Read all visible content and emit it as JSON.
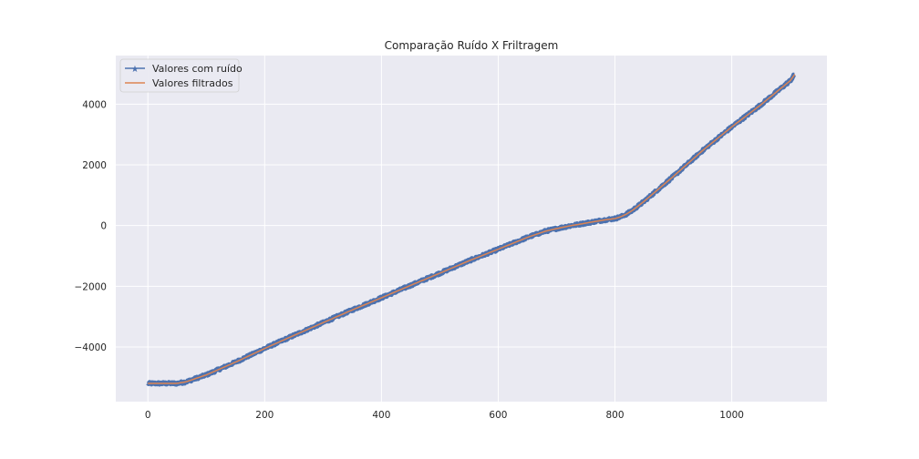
{
  "chart_data": {
    "type": "line",
    "title": "Comparação Ruído X Friltragem",
    "xlabel": "",
    "ylabel": "",
    "xlim": [
      -55,
      1163
    ],
    "ylim": [
      -5800,
      5600
    ],
    "xticks": [
      0,
      200,
      400,
      600,
      800,
      1000
    ],
    "yticks": [
      -4000,
      -2000,
      0,
      2000,
      4000
    ],
    "xtick_labels": [
      "0",
      "200",
      "400",
      "600",
      "800",
      "1000"
    ],
    "ytick_labels": [
      "−4000",
      "−2000",
      "0",
      "2000",
      "4000"
    ],
    "grid": true,
    "legend_position": "top-left",
    "x": [
      0,
      25,
      50,
      65,
      80,
      100,
      150,
      200,
      250,
      300,
      350,
      400,
      450,
      500,
      550,
      600,
      650,
      680,
      700,
      720,
      750,
      780,
      800,
      810,
      820,
      830,
      850,
      900,
      950,
      1000,
      1050,
      1100,
      1108
    ],
    "series": [
      {
        "name": "Valores com ruído",
        "color": "#4c72b0",
        "marker": "star",
        "values": [
          -5200,
          -5200,
          -5200,
          -5150,
          -5050,
          -4920,
          -4500,
          -4050,
          -3620,
          -3200,
          -2780,
          -2380,
          -1970,
          -1570,
          -1160,
          -780,
          -390,
          -190,
          -100,
          -20,
          80,
          180,
          230,
          290,
          380,
          500,
          800,
          1620,
          2470,
          3250,
          3980,
          4770,
          4980
        ],
        "noise_amplitude": 40
      },
      {
        "name": "Valores filtrados",
        "color": "#dd8452",
        "values": [
          -5200,
          -5200,
          -5200,
          -5150,
          -5050,
          -4920,
          -4500,
          -4050,
          -3620,
          -3200,
          -2780,
          -2380,
          -1970,
          -1570,
          -1160,
          -780,
          -390,
          -190,
          -100,
          -20,
          80,
          180,
          230,
          290,
          380,
          500,
          800,
          1620,
          2470,
          3250,
          3980,
          4770,
          4980
        ]
      }
    ],
    "colors": {
      "axes_bg": "#eaeaf2",
      "grid": "#ffffff",
      "text": "#262626"
    }
  }
}
